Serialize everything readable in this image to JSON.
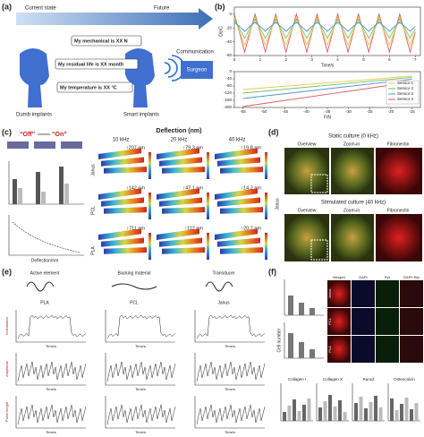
{
  "panel_labels": [
    "(a)",
    "(b)",
    "(c)",
    "(d)",
    "(e)",
    "(f)"
  ],
  "a": {
    "current_state": "Current state",
    "future": "Future",
    "dumb": "Dumb implants",
    "smart": "Smart implants",
    "messages": [
      "My mechanical is XX N",
      "My residual life is XX month",
      "My temperature is XX °C"
    ],
    "communication": "Communication",
    "surgeon": "Surgeon"
  },
  "chart_data": [
    {
      "type": "line",
      "x_label": "Time/s",
      "y_label": "D/pC",
      "x": [
        0,
        0.2,
        0.4,
        0.6,
        0.8,
        1,
        1.2,
        1.4,
        1.6,
        1.8,
        2,
        2.2,
        2.4,
        2.6,
        2.8,
        3,
        3.2,
        3.4,
        3.6,
        3.8,
        4,
        4.2,
        4.4,
        4.6,
        4.8,
        5,
        5.2,
        5.4,
        5.6,
        5.8,
        6,
        6.2,
        6.4,
        6.6,
        6.8,
        7
      ],
      "xlim": [
        0,
        7.2
      ],
      "ylim": [
        -60,
        10
      ],
      "xticks": [
        0,
        1,
        2,
        3,
        4,
        5,
        6,
        7
      ],
      "yticks": [
        -60,
        -40,
        -20,
        0
      ],
      "series": [
        {
          "color": "#e05a5a",
          "values": [
            0,
            -27,
            -55,
            -27,
            0,
            -27,
            -55,
            -27,
            0,
            -27,
            -55,
            -27,
            0,
            -27,
            -55,
            -27,
            0,
            -27,
            -55,
            -27,
            0,
            -27,
            -55,
            -27,
            0,
            -27,
            -55,
            -27,
            0,
            -27,
            -55,
            -27,
            0,
            -27,
            -55,
            -27
          ]
        },
        {
          "color": "#e8c84a",
          "values": [
            -5,
            -25,
            -45,
            -25,
            -5,
            -25,
            -45,
            -25,
            -5,
            -25,
            -45,
            -25,
            -5,
            -25,
            -45,
            -25,
            -5,
            -25,
            -45,
            -25,
            -5,
            -25,
            -45,
            -25,
            -5,
            -25,
            -45,
            -25,
            -5,
            -25,
            -45,
            -25,
            -5,
            -25,
            -45,
            -25
          ]
        },
        {
          "color": "#6cbf6c",
          "values": [
            -8,
            -21,
            -35,
            -21,
            -8,
            -21,
            -35,
            -21,
            -8,
            -21,
            -35,
            -21,
            -8,
            -21,
            -35,
            -21,
            -8,
            -21,
            -35,
            -21,
            -8,
            -21,
            -35,
            -21,
            -8,
            -21,
            -35,
            -21,
            -8,
            -21,
            -35,
            -21,
            -8,
            -21,
            -35,
            -21
          ]
        },
        {
          "color": "#5a8fd0",
          "values": [
            -12,
            -18,
            -25,
            -18,
            -12,
            -18,
            -25,
            -18,
            -12,
            -18,
            -25,
            -18,
            -12,
            -18,
            -25,
            -18,
            -12,
            -18,
            -25,
            -18,
            -12,
            -18,
            -25,
            -18,
            -12,
            -18,
            -25,
            -18,
            -12,
            -18,
            -25,
            -18,
            -12,
            -18,
            -25,
            -18
          ]
        }
      ]
    },
    {
      "type": "line",
      "x_label": "F/N",
      "x": [
        -55,
        -15
      ],
      "xlim": [
        -57,
        -13
      ],
      "xticks": [
        -55,
        -50,
        -45,
        -40,
        -35,
        -30,
        -25,
        -20,
        -15
      ],
      "ylim": [
        -200,
        0
      ],
      "yticks": [
        0,
        -40,
        -80,
        -120,
        -160,
        -200
      ],
      "legend": "lower right",
      "series": [
        {
          "name": "Sensor 1",
          "color": "#e8c84a",
          "values": [
            -100,
            -25
          ]
        },
        {
          "name": "Sensor 2",
          "color": "#6cbf6c",
          "values": [
            -120,
            -32
          ]
        },
        {
          "name": "Sensor 3",
          "color": "#5a8fd0",
          "values": [
            -150,
            -42
          ]
        },
        {
          "name": "Sensor 4",
          "color": "#e05a5a",
          "values": [
            -195,
            -58
          ]
        }
      ]
    }
  ],
  "c": {
    "off": "“Off”",
    "on": "“On”",
    "title": "Deflection (nm)",
    "freqs": [
      "10 kHz",
      "20 kHz",
      "40 kHz"
    ],
    "materials": [
      "Janus",
      "PCL",
      "PLA"
    ],
    "deflections": [
      [
        "↑207 nm",
        "↑79.3 nm",
        "↑19.8 nm"
      ],
      [
        "↑142 nm",
        "↑47.1 nm",
        "↑14.2 nm"
      ],
      [
        "↑711 nm",
        "↑112 nm",
        "↑20.7 nm"
      ]
    ],
    "x_label": "Deflection/nm"
  },
  "d": {
    "static": "Static culture (0 kHz)",
    "stimulated": "Stimulated culture (40 kHz)",
    "columns": [
      "Overview",
      "Zoom-in",
      "Fibronectin"
    ],
    "row_label": "Janus"
  },
  "e": {
    "headers": [
      "Active element",
      "Backing material",
      "Transducer"
    ],
    "materials": [
      "PLA",
      "PCL",
      "Janus"
    ],
    "x_label": "Time/s",
    "y_labels": [
      "Indentation",
      "Amplitude",
      "Pulse length"
    ]
  },
  "f": {
    "channels": [
      "Merged",
      "DAPI",
      "Ryr",
      "DAPI+Ryr"
    ],
    "rows": [
      "Janus",
      "PCL",
      "PLA"
    ],
    "markers": [
      "Collagen I",
      "Collagen X",
      "Runx2",
      "Osteocalcin"
    ],
    "y_label": "Cell number"
  }
}
